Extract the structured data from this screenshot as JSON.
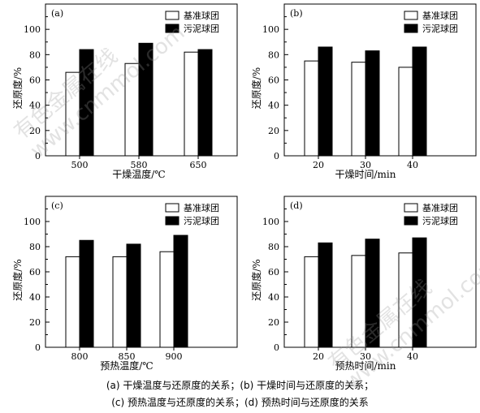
{
  "watermark": {
    "line1": "有色金属在线",
    "line2": "www.cnmmol.com"
  },
  "legend": {
    "baseline": "基准球团",
    "sludge": "污泥球团"
  },
  "colors": {
    "baseline": "#ffffff",
    "sludge": "#000000",
    "axis": "#000000"
  },
  "captions": {
    "line1": "(a) 干燥温度与还原度的关系；(b) 干燥时间与还原度的关系；",
    "line2": "(c) 预热温度与还原度的关系；(d) 预热时间与还原度的关系"
  },
  "chart_data": [
    {
      "type": "bar",
      "panel": "(a)",
      "xlabel": "干燥温度/℃",
      "ylabel": "还原度/%",
      "ylim": [
        0,
        120
      ],
      "yticks": [
        0,
        20,
        40,
        60,
        80,
        100
      ],
      "grid": false,
      "legend_position": "top-right",
      "categories": [
        "500",
        "580",
        "650"
      ],
      "series": [
        {
          "name": "基准球团",
          "values": [
            66,
            73,
            82
          ]
        },
        {
          "name": "污泥球团",
          "values": [
            84,
            89,
            84
          ]
        }
      ]
    },
    {
      "type": "bar",
      "panel": "(b)",
      "xlabel": "干燥时间/min",
      "ylabel": "还原度/%",
      "ylim": [
        0,
        120
      ],
      "yticks": [
        0,
        20,
        40,
        60,
        80,
        100
      ],
      "grid": false,
      "legend_position": "top-right",
      "categories": [
        "20",
        "30",
        "40"
      ],
      "series": [
        {
          "name": "基准球团",
          "values": [
            75,
            74,
            70
          ]
        },
        {
          "name": "污泥球团",
          "values": [
            86,
            83,
            86
          ]
        }
      ]
    },
    {
      "type": "bar",
      "panel": "(c)",
      "xlabel": "预热温度/℃",
      "ylabel": "还原度/%",
      "ylim": [
        0,
        120
      ],
      "yticks": [
        0,
        20,
        40,
        60,
        80,
        100
      ],
      "grid": false,
      "legend_position": "top-right",
      "categories": [
        "800",
        "850",
        "900"
      ],
      "series": [
        {
          "name": "基准球团",
          "values": [
            72,
            72,
            76
          ]
        },
        {
          "name": "污泥球团",
          "values": [
            85,
            82,
            89
          ]
        }
      ]
    },
    {
      "type": "bar",
      "panel": "(d)",
      "xlabel": "预热时间/min",
      "ylabel": "还原度/%",
      "ylim": [
        0,
        120
      ],
      "yticks": [
        0,
        20,
        40,
        60,
        80,
        100
      ],
      "grid": false,
      "legend_position": "top-right",
      "categories": [
        "20",
        "30",
        "40"
      ],
      "series": [
        {
          "name": "基准球团",
          "values": [
            72,
            73,
            75
          ]
        },
        {
          "name": "污泥球团",
          "values": [
            83,
            86,
            87
          ]
        }
      ]
    }
  ]
}
